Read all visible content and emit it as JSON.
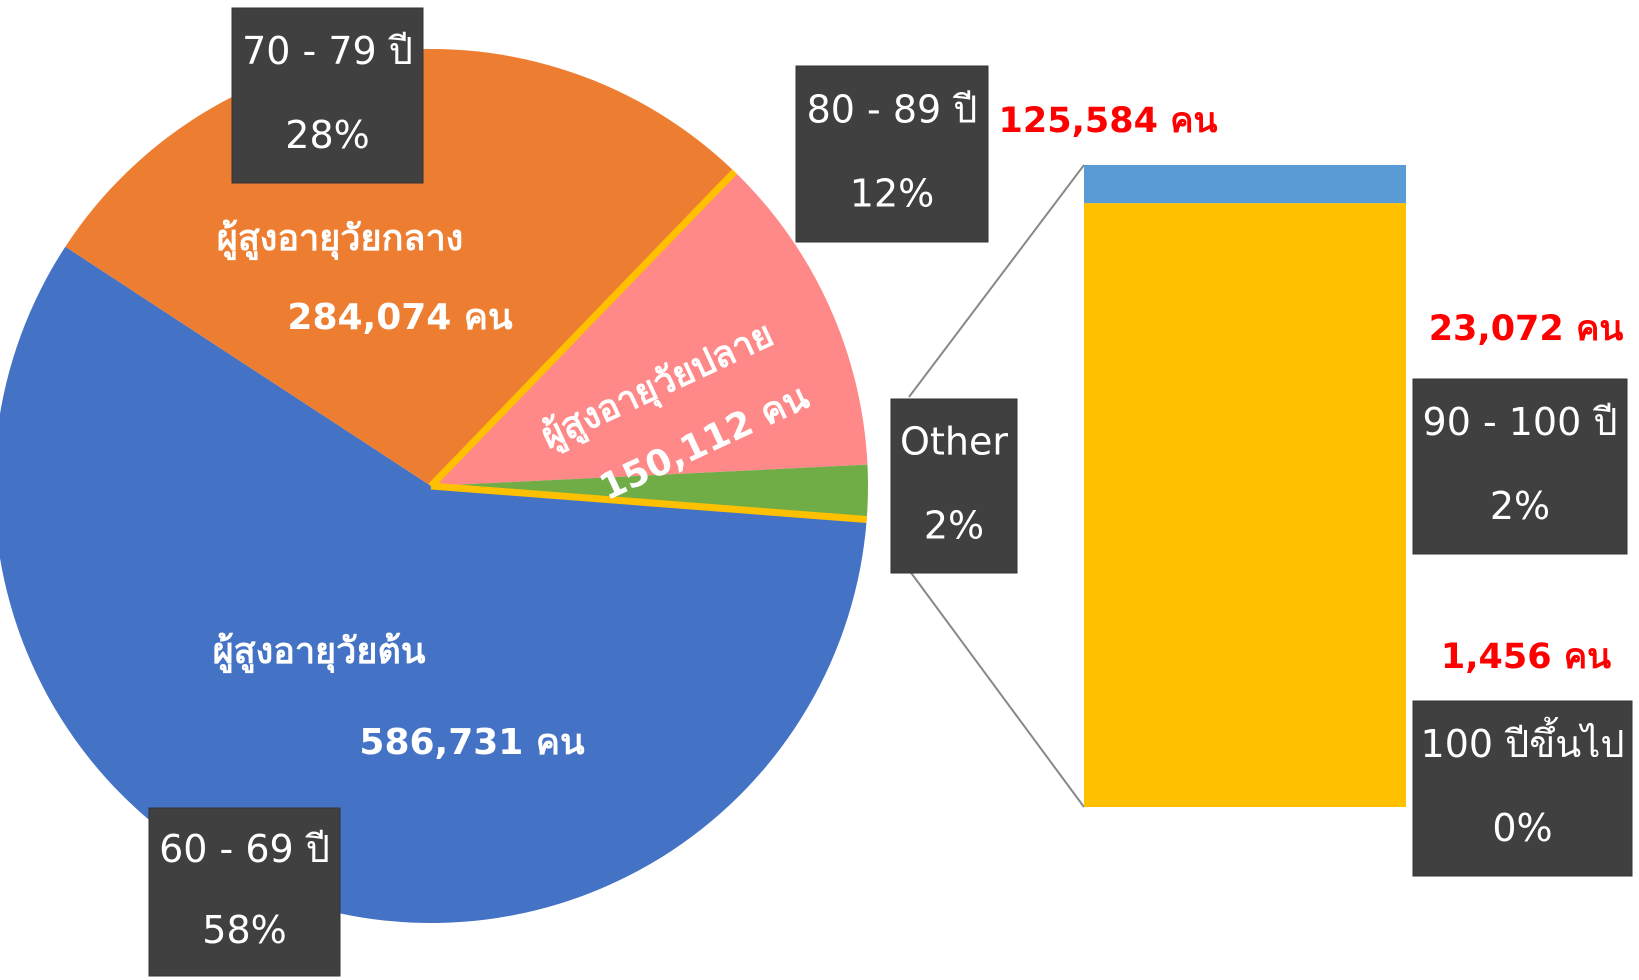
{
  "chart_data": [
    {
      "type": "pie",
      "categories": [
        "60 - 69 ปี",
        "70 - 79 ปี",
        "80 - 89 ปี",
        "Other"
      ],
      "values": [
        58,
        28,
        12,
        2
      ],
      "value_labels": [
        "58%",
        "28%",
        "12%",
        "2%"
      ],
      "colors": [
        "#4472c4",
        "#ed7d31",
        "#ff8989",
        "#70ad47"
      ],
      "group_names": [
        "ผู้สูงอายุวัยต้น",
        "ผู้สูงอายุวัยกลาง",
        "ผู้สูงอายุวัยปลาย"
      ],
      "count_labels": [
        "586,731 คน",
        "284,074 คน",
        "150,112 คน"
      ],
      "annotation": "125,584 คน"
    },
    {
      "type": "stacked-bar",
      "categories": [
        "90 - 100 ปี",
        "100 ปีขึ้นไป"
      ],
      "values": [
        23072,
        1456
      ],
      "value_labels": [
        "23,072 คน",
        "1,456 คน"
      ],
      "percent_labels": [
        "2%",
        "0%"
      ],
      "colors": [
        "#ffc000",
        "#5b9bd5"
      ]
    }
  ]
}
